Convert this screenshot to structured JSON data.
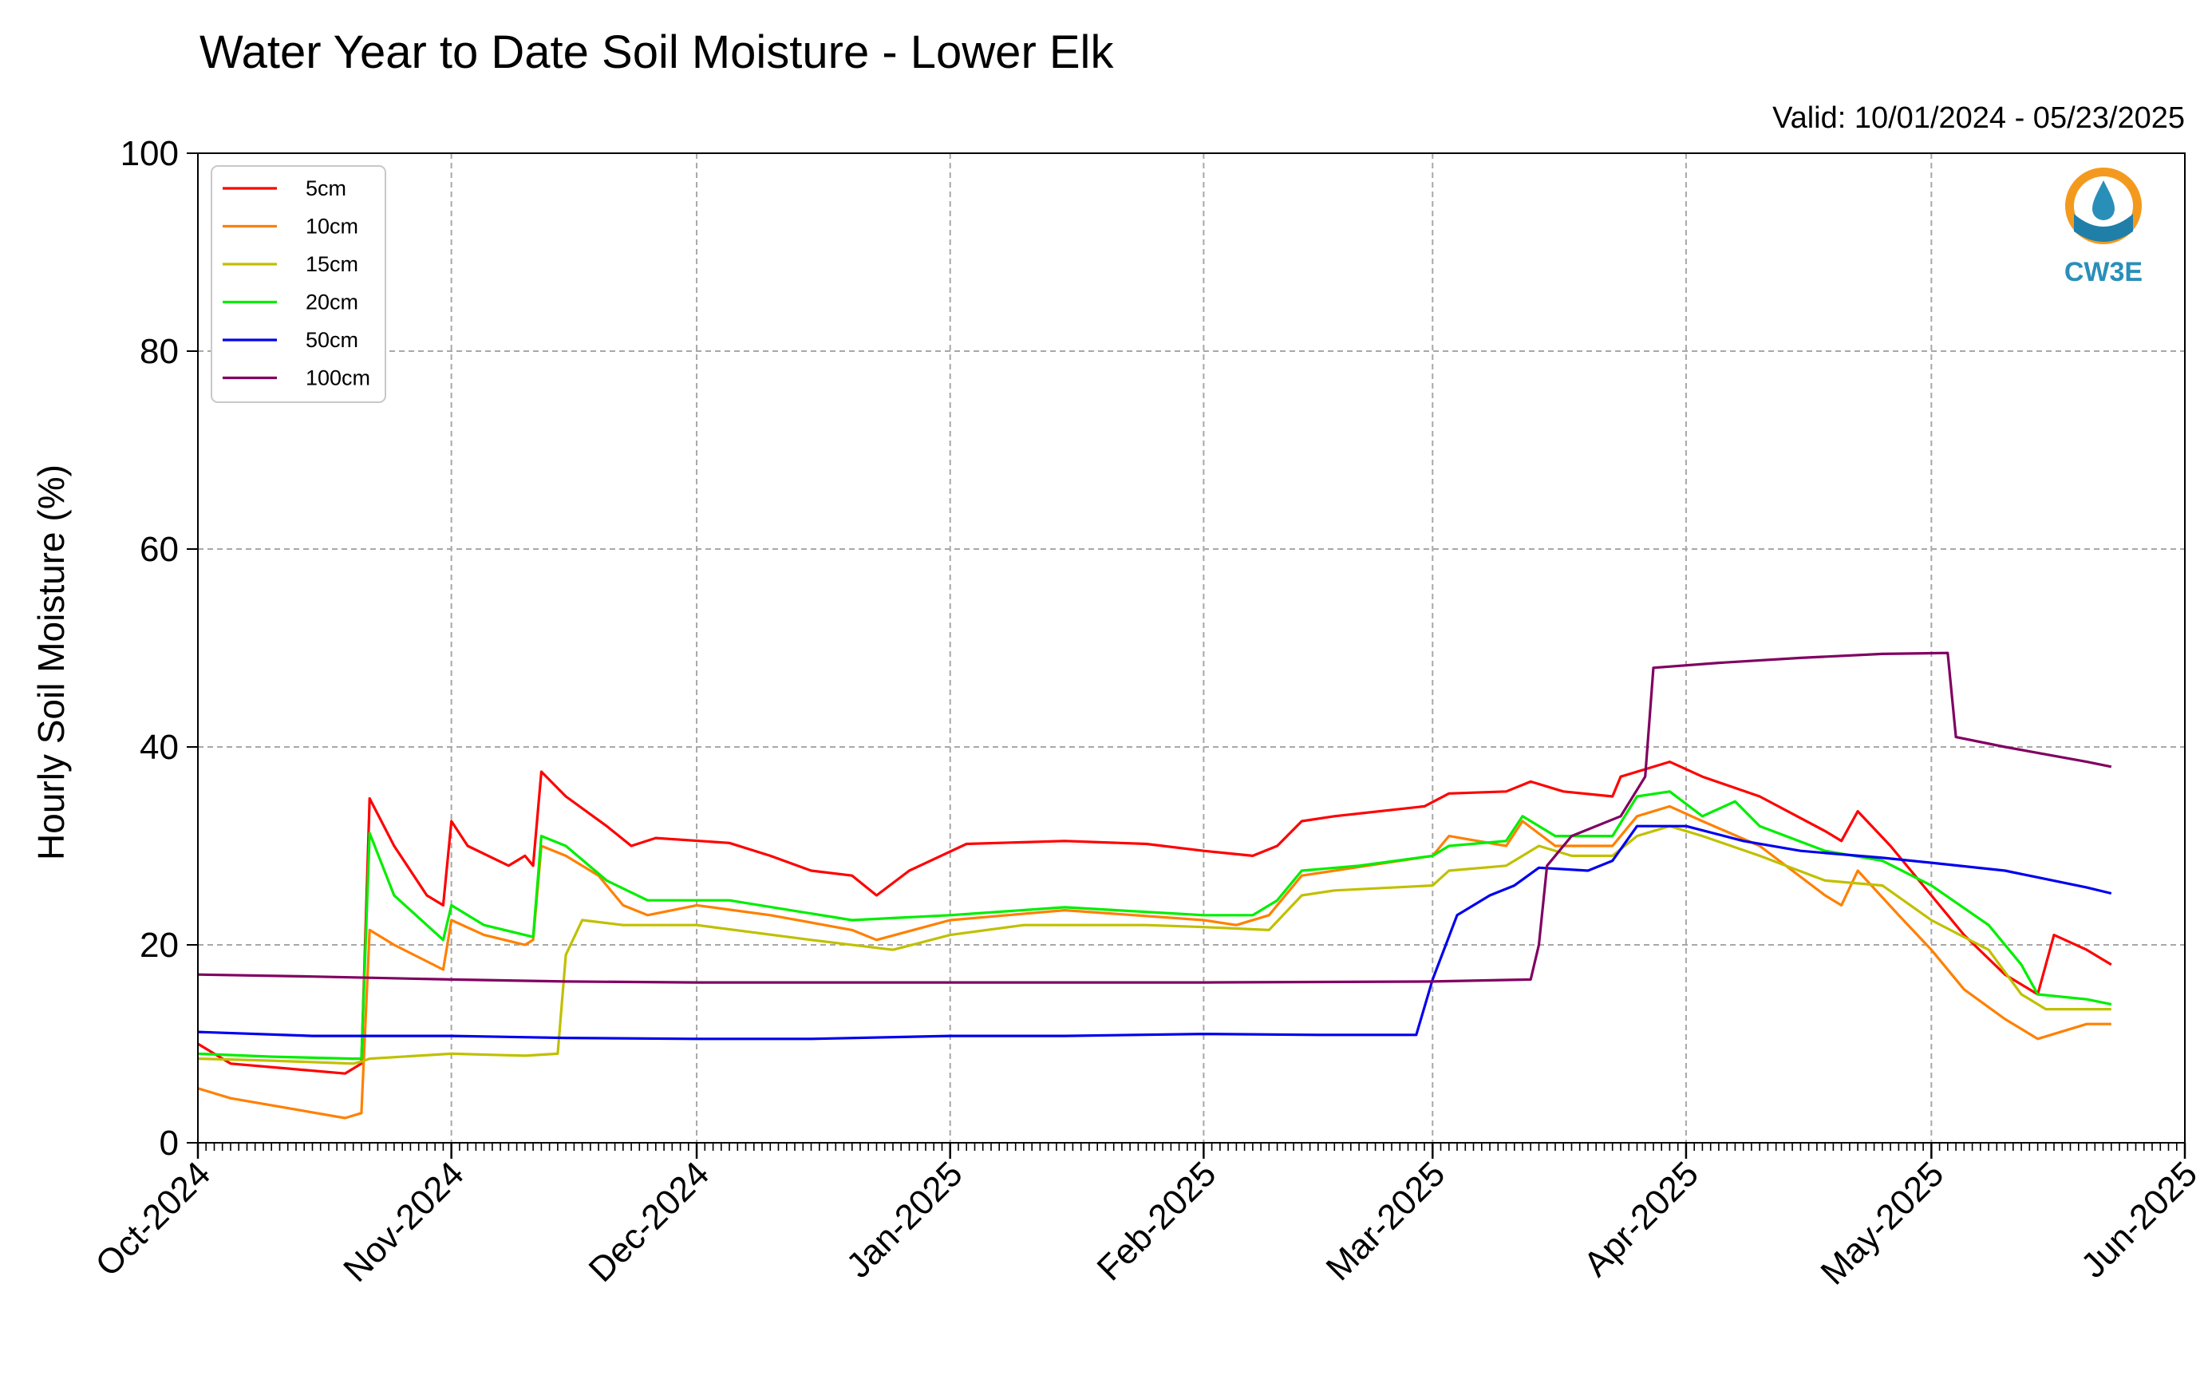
{
  "chart_data": {
    "type": "line",
    "title": "Water Year to Date Soil Moisture - Lower Elk",
    "subtitle": "Valid: 10/01/2024 - 05/23/2025",
    "ylabel": "Hourly Soil Moisture (%)",
    "xlabel": "",
    "ylim": [
      0,
      100
    ],
    "yticks": [
      "0",
      "20",
      "40",
      "60",
      "80",
      "100"
    ],
    "xlim": [
      "2024-10-01",
      "2025-06-01"
    ],
    "xticks": [
      {
        "date": "2024-10-01",
        "label": "Oct-2024"
      },
      {
        "date": "2024-11-01",
        "label": "Nov-2024"
      },
      {
        "date": "2024-12-01",
        "label": "Dec-2024"
      },
      {
        "date": "2025-01-01",
        "label": "Jan-2025"
      },
      {
        "date": "2025-02-01",
        "label": "Feb-2025"
      },
      {
        "date": "2025-03-01",
        "label": "Mar-2025"
      },
      {
        "date": "2025-04-01",
        "label": "Apr-2025"
      },
      {
        "date": "2025-05-01",
        "label": "May-2025"
      },
      {
        "date": "2025-06-01",
        "label": "Jun-2025"
      }
    ],
    "grid": true,
    "legend_position": "top-left",
    "logo_text": "CW3E",
    "series": [
      {
        "name": "5cm",
        "color": "#ff0000",
        "points": [
          [
            "2024-10-01",
            10
          ],
          [
            "2024-10-05",
            8
          ],
          [
            "2024-10-12",
            7.5
          ],
          [
            "2024-10-19",
            7
          ],
          [
            "2024-10-21",
            8
          ],
          [
            "2024-10-22",
            34.8
          ],
          [
            "2024-10-25",
            30
          ],
          [
            "2024-10-29",
            25
          ],
          [
            "2024-10-31",
            24
          ],
          [
            "2024-11-01",
            32.5
          ],
          [
            "2024-11-03",
            30
          ],
          [
            "2024-11-08",
            28
          ],
          [
            "2024-11-10",
            29
          ],
          [
            "2024-11-11",
            28
          ],
          [
            "2024-11-12",
            37.5
          ],
          [
            "2024-11-15",
            35
          ],
          [
            "2024-11-20",
            32
          ],
          [
            "2024-11-23",
            30
          ],
          [
            "2024-11-26",
            30.8
          ],
          [
            "2024-12-05",
            30.3
          ],
          [
            "2024-12-10",
            29
          ],
          [
            "2024-12-15",
            27.5
          ],
          [
            "2024-12-20",
            27
          ],
          [
            "2024-12-23",
            25
          ],
          [
            "2024-12-27",
            27.5
          ],
          [
            "2025-01-03",
            30.2
          ],
          [
            "2025-01-15",
            30.5
          ],
          [
            "2025-01-25",
            30.2
          ],
          [
            "2025-02-01",
            29.5
          ],
          [
            "2025-02-07",
            29
          ],
          [
            "2025-02-10",
            30
          ],
          [
            "2025-02-13",
            32.5
          ],
          [
            "2025-02-17",
            33
          ],
          [
            "2025-02-28",
            34
          ],
          [
            "2025-03-03",
            35.3
          ],
          [
            "2025-03-10",
            35.5
          ],
          [
            "2025-03-13",
            36.5
          ],
          [
            "2025-03-17",
            35.5
          ],
          [
            "2025-03-23",
            35
          ],
          [
            "2025-03-24",
            37
          ],
          [
            "2025-03-30",
            38.5
          ],
          [
            "2025-04-03",
            37
          ],
          [
            "2025-04-10",
            35
          ],
          [
            "2025-04-18",
            31.5
          ],
          [
            "2025-04-20",
            30.5
          ],
          [
            "2025-04-22",
            33.5
          ],
          [
            "2025-04-26",
            30
          ],
          [
            "2025-04-30",
            26
          ],
          [
            "2025-05-01",
            25
          ],
          [
            "2025-05-05",
            21
          ],
          [
            "2025-05-10",
            17
          ],
          [
            "2025-05-14",
            15
          ],
          [
            "2025-05-16",
            21
          ],
          [
            "2025-05-20",
            19.5
          ],
          [
            "2025-05-23",
            18
          ]
        ]
      },
      {
        "name": "10cm",
        "color": "#ff8000",
        "points": [
          [
            "2024-10-01",
            5.5
          ],
          [
            "2024-10-05",
            4.5
          ],
          [
            "2024-10-12",
            3.5
          ],
          [
            "2024-10-19",
            2.5
          ],
          [
            "2024-10-21",
            3
          ],
          [
            "2024-10-22",
            21.5
          ],
          [
            "2024-10-25",
            20
          ],
          [
            "2024-10-31",
            17.5
          ],
          [
            "2024-11-01",
            22.5
          ],
          [
            "2024-11-05",
            21
          ],
          [
            "2024-11-10",
            20
          ],
          [
            "2024-11-11",
            20.5
          ],
          [
            "2024-11-12",
            30
          ],
          [
            "2024-11-15",
            29
          ],
          [
            "2024-11-19",
            27
          ],
          [
            "2024-11-22",
            24
          ],
          [
            "2024-11-25",
            23
          ],
          [
            "2024-12-01",
            24
          ],
          [
            "2024-12-10",
            23
          ],
          [
            "2024-12-20",
            21.5
          ],
          [
            "2024-12-23",
            20.5
          ],
          [
            "2025-01-01",
            22.5
          ],
          [
            "2025-01-15",
            23.5
          ],
          [
            "2025-02-01",
            22.5
          ],
          [
            "2025-02-05",
            22
          ],
          [
            "2025-02-09",
            23
          ],
          [
            "2025-02-13",
            27
          ],
          [
            "2025-02-17",
            27.5
          ],
          [
            "2025-03-01",
            29
          ],
          [
            "2025-03-03",
            31
          ],
          [
            "2025-03-10",
            30
          ],
          [
            "2025-03-12",
            32.5
          ],
          [
            "2025-03-16",
            30
          ],
          [
            "2025-03-23",
            30
          ],
          [
            "2025-03-26",
            33
          ],
          [
            "2025-03-30",
            34
          ],
          [
            "2025-04-03",
            32.5
          ],
          [
            "2025-04-10",
            30
          ],
          [
            "2025-04-18",
            25
          ],
          [
            "2025-04-20",
            24
          ],
          [
            "2025-04-22",
            27.5
          ],
          [
            "2025-04-27",
            23
          ],
          [
            "2025-05-01",
            19.5
          ],
          [
            "2025-05-05",
            15.5
          ],
          [
            "2025-05-10",
            12.5
          ],
          [
            "2025-05-14",
            10.5
          ],
          [
            "2025-05-20",
            12
          ],
          [
            "2025-05-23",
            12
          ]
        ]
      },
      {
        "name": "15cm",
        "color": "#c0c000",
        "points": [
          [
            "2024-10-01",
            8.5
          ],
          [
            "2024-10-10",
            8.3
          ],
          [
            "2024-10-20",
            8
          ],
          [
            "2024-10-21",
            8.2
          ],
          [
            "2024-10-22",
            8.5
          ],
          [
            "2024-11-01",
            9
          ],
          [
            "2024-11-10",
            8.8
          ],
          [
            "2024-11-14",
            9
          ],
          [
            "2024-11-15",
            19
          ],
          [
            "2024-11-17",
            22.5
          ],
          [
            "2024-11-22",
            22
          ],
          [
            "2024-12-01",
            22
          ],
          [
            "2024-12-15",
            20.5
          ],
          [
            "2024-12-25",
            19.5
          ],
          [
            "2025-01-01",
            21
          ],
          [
            "2025-01-10",
            22
          ],
          [
            "2025-01-25",
            22
          ],
          [
            "2025-02-01",
            21.8
          ],
          [
            "2025-02-09",
            21.5
          ],
          [
            "2025-02-13",
            25
          ],
          [
            "2025-02-17",
            25.5
          ],
          [
            "2025-03-01",
            26
          ],
          [
            "2025-03-03",
            27.5
          ],
          [
            "2025-03-10",
            28
          ],
          [
            "2025-03-14",
            30
          ],
          [
            "2025-03-18",
            29
          ],
          [
            "2025-03-23",
            29
          ],
          [
            "2025-03-26",
            31
          ],
          [
            "2025-03-30",
            32
          ],
          [
            "2025-04-03",
            31
          ],
          [
            "2025-04-10",
            29
          ],
          [
            "2025-04-18",
            26.5
          ],
          [
            "2025-04-25",
            26
          ],
          [
            "2025-05-01",
            22.5
          ],
          [
            "2025-05-08",
            19.5
          ],
          [
            "2025-05-12",
            15
          ],
          [
            "2025-05-15",
            13.5
          ],
          [
            "2025-05-23",
            13.5
          ]
        ]
      },
      {
        "name": "20cm",
        "color": "#00ee00",
        "points": [
          [
            "2024-10-01",
            9
          ],
          [
            "2024-10-10",
            8.7
          ],
          [
            "2024-10-20",
            8.5
          ],
          [
            "2024-10-21",
            8.5
          ],
          [
            "2024-10-22",
            31.3
          ],
          [
            "2024-10-25",
            25
          ],
          [
            "2024-10-31",
            20.5
          ],
          [
            "2024-11-01",
            24
          ],
          [
            "2024-11-05",
            22
          ],
          [
            "2024-11-11",
            20.8
          ],
          [
            "2024-11-12",
            31
          ],
          [
            "2024-11-15",
            30
          ],
          [
            "2024-11-20",
            26.5
          ],
          [
            "2024-11-25",
            24.5
          ],
          [
            "2024-12-05",
            24.5
          ],
          [
            "2024-12-20",
            22.5
          ],
          [
            "2025-01-01",
            23
          ],
          [
            "2025-01-15",
            23.8
          ],
          [
            "2025-02-01",
            23
          ],
          [
            "2025-02-07",
            23
          ],
          [
            "2025-02-10",
            24.5
          ],
          [
            "2025-02-13",
            27.5
          ],
          [
            "2025-02-20",
            28
          ],
          [
            "2025-03-01",
            29
          ],
          [
            "2025-03-03",
            30
          ],
          [
            "2025-03-10",
            30.5
          ],
          [
            "2025-03-12",
            33
          ],
          [
            "2025-03-16",
            31
          ],
          [
            "2025-03-23",
            31
          ],
          [
            "2025-03-26",
            35
          ],
          [
            "2025-03-30",
            35.5
          ],
          [
            "2025-04-03",
            33
          ],
          [
            "2025-04-07",
            34.5
          ],
          [
            "2025-04-10",
            32
          ],
          [
            "2025-04-18",
            29.5
          ],
          [
            "2025-04-25",
            28.5
          ],
          [
            "2025-05-01",
            26
          ],
          [
            "2025-05-08",
            22
          ],
          [
            "2025-05-12",
            18
          ],
          [
            "2025-05-14",
            15
          ],
          [
            "2025-05-20",
            14.5
          ],
          [
            "2025-05-23",
            14
          ]
        ]
      },
      {
        "name": "50cm",
        "color": "#0000ee",
        "points": [
          [
            "2024-10-01",
            11.2
          ],
          [
            "2024-10-15",
            10.8
          ],
          [
            "2024-11-01",
            10.8
          ],
          [
            "2024-11-15",
            10.6
          ],
          [
            "2024-12-01",
            10.5
          ],
          [
            "2024-12-15",
            10.5
          ],
          [
            "2025-01-01",
            10.8
          ],
          [
            "2025-01-15",
            10.8
          ],
          [
            "2025-02-01",
            11
          ],
          [
            "2025-02-15",
            10.9
          ],
          [
            "2025-02-27",
            10.9
          ],
          [
            "2025-03-01",
            16.5
          ],
          [
            "2025-03-04",
            23
          ],
          [
            "2025-03-08",
            25
          ],
          [
            "2025-03-11",
            26
          ],
          [
            "2025-03-14",
            27.8
          ],
          [
            "2025-03-20",
            27.5
          ],
          [
            "2025-03-23",
            28.5
          ],
          [
            "2025-03-26",
            32
          ],
          [
            "2025-04-01",
            32
          ],
          [
            "2025-04-08",
            30.5
          ],
          [
            "2025-04-15",
            29.5
          ],
          [
            "2025-04-25",
            28.8
          ],
          [
            "2025-05-01",
            28.3
          ],
          [
            "2025-05-10",
            27.5
          ],
          [
            "2025-05-20",
            25.8
          ],
          [
            "2025-05-23",
            25.2
          ]
        ]
      },
      {
        "name": "100cm",
        "color": "#800060",
        "points": [
          [
            "2024-10-01",
            17
          ],
          [
            "2024-10-15",
            16.8
          ],
          [
            "2024-11-01",
            16.5
          ],
          [
            "2024-11-15",
            16.3
          ],
          [
            "2024-12-01",
            16.2
          ],
          [
            "2025-01-01",
            16.2
          ],
          [
            "2025-02-01",
            16.2
          ],
          [
            "2025-03-01",
            16.3
          ],
          [
            "2025-03-13",
            16.5
          ],
          [
            "2025-03-14",
            20
          ],
          [
            "2025-03-15",
            28
          ],
          [
            "2025-03-18",
            31
          ],
          [
            "2025-03-24",
            33
          ],
          [
            "2025-03-27",
            37
          ],
          [
            "2025-03-28",
            48
          ],
          [
            "2025-04-05",
            48.5
          ],
          [
            "2025-04-15",
            49
          ],
          [
            "2025-04-25",
            49.4
          ],
          [
            "2025-05-03",
            49.5
          ],
          [
            "2025-05-04",
            41
          ],
          [
            "2025-05-10",
            40
          ],
          [
            "2025-05-20",
            38.5
          ],
          [
            "2025-05-23",
            38
          ]
        ]
      }
    ]
  }
}
